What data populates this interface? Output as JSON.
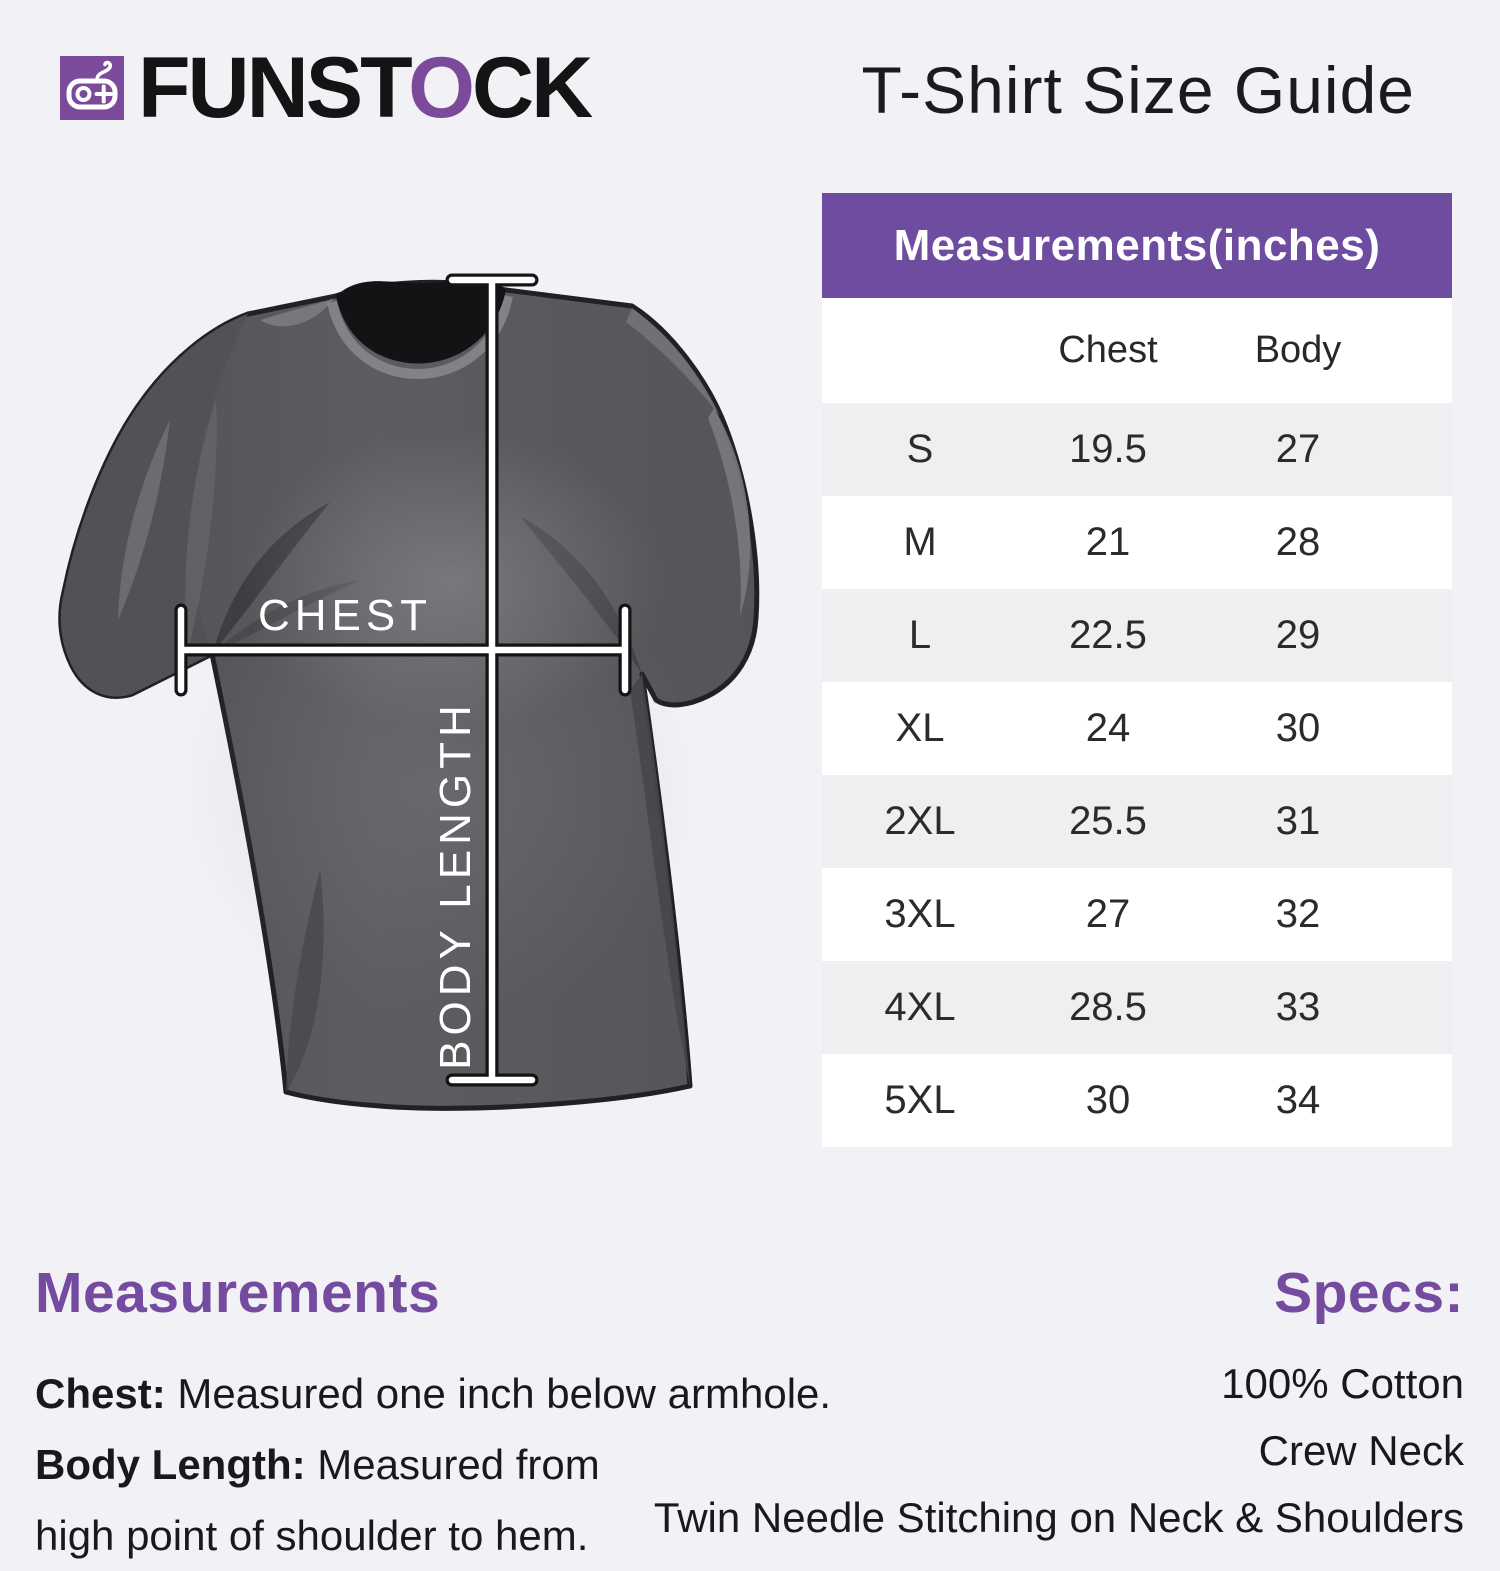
{
  "header": {
    "logo_text_before_o": "FUNST",
    "logo_o": "O",
    "logo_text_after_o": "CK",
    "title": "T-Shirt Size Guide"
  },
  "diagram": {
    "chest_label": "CHEST",
    "body_length_label": "BODY LENGTH"
  },
  "size_table": {
    "header": "Measurements(inches)",
    "columns": {
      "size": "",
      "chest": "Chest",
      "body": "Body"
    },
    "rows": [
      {
        "size": "S",
        "chest": "19.5",
        "body": "27"
      },
      {
        "size": "M",
        "chest": "21",
        "body": "28"
      },
      {
        "size": "L",
        "chest": "22.5",
        "body": "29"
      },
      {
        "size": "XL",
        "chest": "24",
        "body": "30"
      },
      {
        "size": "2XL",
        "chest": "25.5",
        "body": "31"
      },
      {
        "size": "3XL",
        "chest": "27",
        "body": "32"
      },
      {
        "size": "4XL",
        "chest": "28.5",
        "body": "33"
      },
      {
        "size": "5XL",
        "chest": "30",
        "body": "34"
      }
    ]
  },
  "measurements_section": {
    "heading": "Measurements",
    "lines": [
      {
        "label": "Chest:",
        "text": " Measured one inch below armhole."
      },
      {
        "label": "Body Length:",
        "text": " Measured from"
      },
      {
        "label": "",
        "text": "high point of shoulder to hem."
      }
    ]
  },
  "specs_section": {
    "heading": "Specs:",
    "lines": [
      "100% Cotton",
      "Crew Neck",
      "Twin Needle Stitching on Neck & Shoulders"
    ]
  },
  "colors": {
    "page_bg": "#f2f1f6",
    "accent": "#6e4c9f",
    "logo_purple": "#7c4a9a",
    "heading_purple": "#744b9f",
    "row_alt": "#efeff1",
    "text_dark": "#1b1b1d",
    "table_text": "#2b2b2d"
  }
}
